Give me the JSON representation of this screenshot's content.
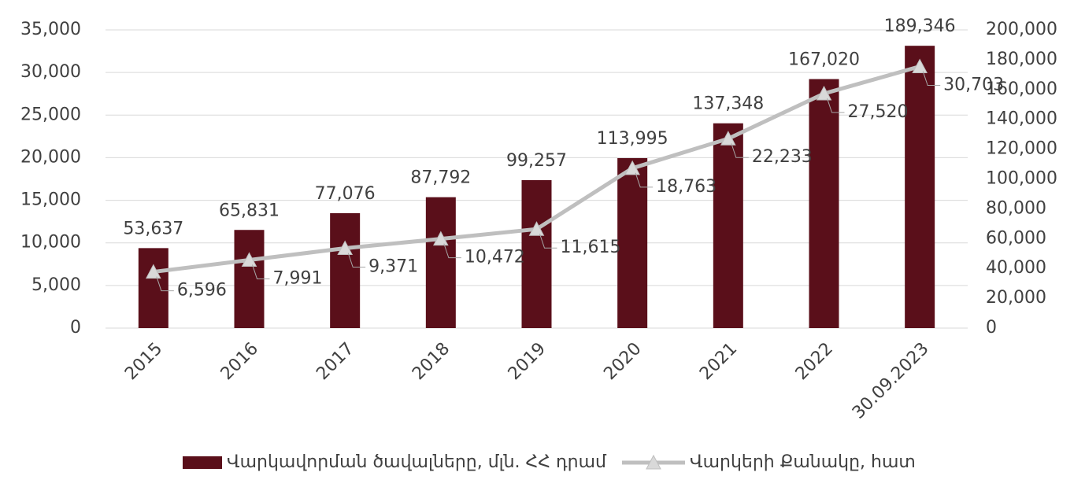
{
  "chart_data": {
    "type": "bar_line",
    "categories": [
      "2015",
      "2016",
      "2017",
      "2018",
      "2019",
      "2020",
      "2021",
      "2022",
      "30.09.2023"
    ],
    "series": [
      {
        "name": "Վարկավորման ծավալները, մլն. ՀՀ դրամ",
        "type": "bar",
        "axis": "y2",
        "color": "#5a0f1a",
        "values": [
          53637,
          65831,
          77076,
          87792,
          99257,
          113995,
          137348,
          167020,
          189346
        ],
        "value_labels": [
          "53,637",
          "65,831",
          "77,076",
          "87,792",
          "99,257",
          "113,995",
          "137,348",
          "167,020",
          "189,346"
        ]
      },
      {
        "name": "Վարկերի Քանակը, հատ",
        "type": "line",
        "axis": "y",
        "color": "#bfbfbf",
        "values": [
          6596,
          7991,
          9371,
          10472,
          11615,
          18763,
          22233,
          27520,
          30703
        ],
        "value_labels": [
          "6,596",
          "7,991",
          "9,371",
          "10,472",
          "11,615",
          "18,763",
          "22,233",
          "27,520",
          "30,703"
        ]
      }
    ],
    "ylim": [
      0,
      35000
    ],
    "yticks": [
      0,
      {
        "value": 5000,
        "label": "5,000"
      },
      {
        "value": 10000,
        "label": "10,000"
      },
      {
        "value": 15000,
        "label": "15,000"
      },
      {
        "value": 20000,
        "label": "20,000"
      },
      {
        "value": 25000,
        "label": "25,000"
      },
      {
        "value": 30000,
        "label": "30,000"
      },
      {
        "value": 35000,
        "label": "35,000"
      }
    ],
    "y2lim": [
      0,
      200000
    ],
    "y2ticks": [
      0,
      {
        "value": 20000,
        "label": "20,000"
      },
      {
        "value": 40000,
        "label": "40,000"
      },
      {
        "value": 60000,
        "label": "60,000"
      },
      {
        "value": 80000,
        "label": "80,000"
      },
      {
        "value": 100000,
        "label": "100,000"
      },
      {
        "value": 120000,
        "label": "120,000"
      },
      {
        "value": 140000,
        "label": "140,000"
      },
      {
        "value": 160000,
        "label": "160,000"
      },
      {
        "value": 180000,
        "label": "180,000"
      },
      {
        "value": 200000,
        "label": "200,000"
      }
    ],
    "grid": true,
    "legend": "bottom"
  }
}
